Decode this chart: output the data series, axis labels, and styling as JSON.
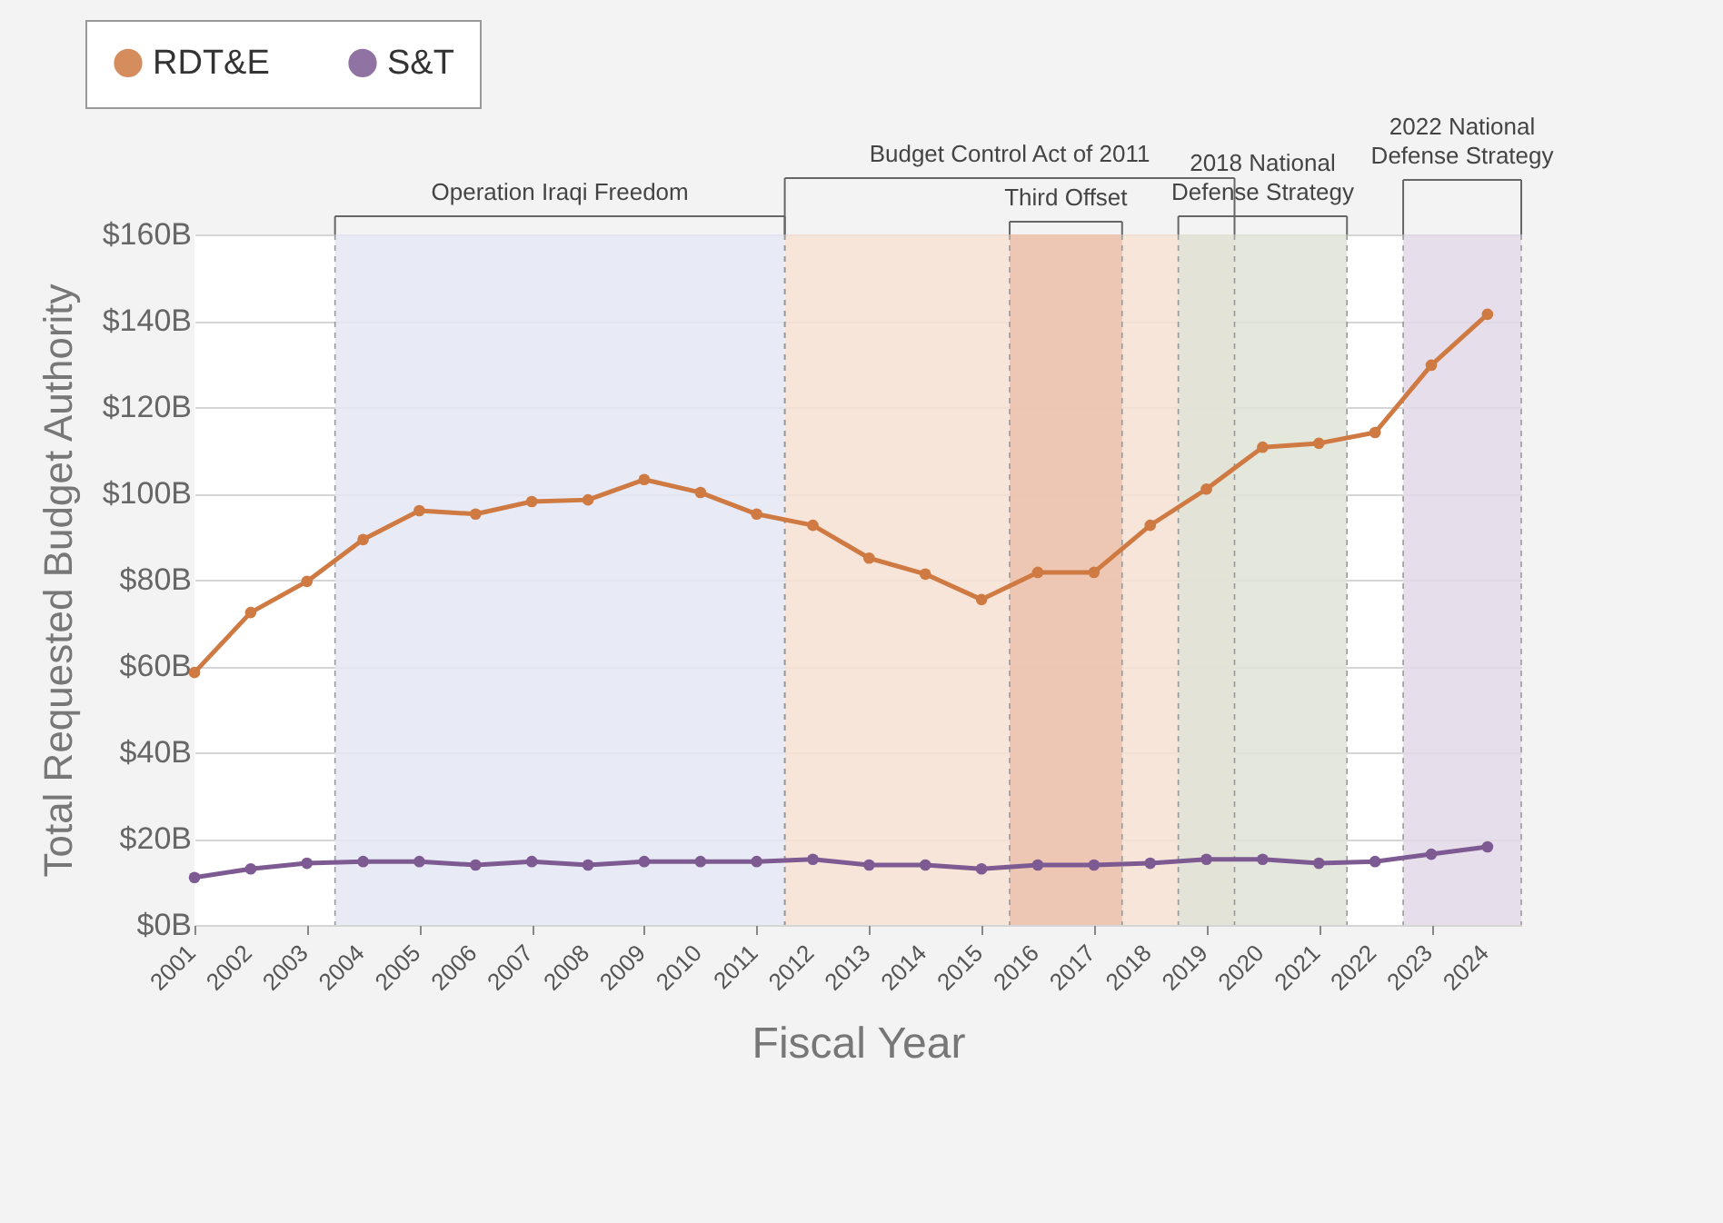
{
  "chart_data": {
    "type": "line",
    "xlabel": "Fiscal Year",
    "ylabel": "Total Requested Budget Authority",
    "x": [
      2001,
      2002,
      2003,
      2004,
      2005,
      2006,
      2007,
      2008,
      2009,
      2010,
      2011,
      2012,
      2013,
      2014,
      2015,
      2016,
      2017,
      2018,
      2019,
      2020,
      2021,
      2022,
      2023,
      2024
    ],
    "series": [
      {
        "name": "RDT&E",
        "color": "#cf7a42",
        "values": [
          58.5,
          72.4,
          79.6,
          89.3,
          96,
          95.2,
          98.1,
          98.5,
          103.2,
          100.2,
          95.2,
          92.6,
          85,
          81.3,
          75.4,
          81.7,
          81.7,
          92.6,
          101,
          110.7,
          111.6,
          114.1,
          129.7,
          141.5
        ]
      },
      {
        "name": "S&T",
        "color": "#7d5b92",
        "values": [
          11,
          13,
          14.3,
          14.7,
          14.7,
          13.9,
          14.7,
          13.9,
          14.7,
          14.7,
          14.7,
          15.2,
          13.9,
          13.9,
          13,
          13.9,
          13.9,
          14.3,
          15.2,
          15.2,
          14.3,
          14.7,
          16.4,
          18.1
        ]
      }
    ],
    "xlim": [
      2001,
      2024.6
    ],
    "xticks": [
      2001,
      2002,
      2003,
      2004,
      2005,
      2006,
      2007,
      2008,
      2009,
      2010,
      2011,
      2012,
      2013,
      2014,
      2015,
      2016,
      2017,
      2018,
      2019,
      2020,
      2021,
      2022,
      2023,
      2024
    ],
    "ylim": [
      0,
      160
    ],
    "yticks": [
      {
        "value": 0,
        "label": "$0B"
      },
      {
        "value": 20,
        "label": "$20B"
      },
      {
        "value": 40,
        "label": "$40B"
      },
      {
        "value": 60,
        "label": "$60B"
      },
      {
        "value": 80,
        "label": "$80B"
      },
      {
        "value": 100,
        "label": "$100B"
      },
      {
        "value": 120,
        "label": "$120B"
      },
      {
        "value": 140,
        "label": "$140B"
      },
      {
        "value": 160,
        "label": "$160B"
      }
    ],
    "bands": [
      {
        "axis": "x",
        "from": 2003.5,
        "to": 2011.5,
        "label": "Operation Iraqi Freedom",
        "color": "#e4e7f3"
      },
      {
        "axis": "x",
        "from": 2011.5,
        "to": 2019.5,
        "label": "Budget Control Act of 2011",
        "color": "#f6e0d3"
      },
      {
        "axis": "x",
        "from": 2015.5,
        "to": 2017.5,
        "label": "Third Offset",
        "color": "#ebc2ac"
      },
      {
        "axis": "x",
        "from": 2018.5,
        "to": 2021.5,
        "label": "2018 National\nDefense Strategy",
        "color": "#dfe4d6"
      },
      {
        "axis": "x",
        "from": 2022.5,
        "to": 2024.6,
        "label": "2022 National\nDefense Strategy",
        "color": "#e2d9e8"
      }
    ],
    "grid": "y",
    "legend": "top left",
    "marker": "circle",
    "line_style": "solid"
  }
}
